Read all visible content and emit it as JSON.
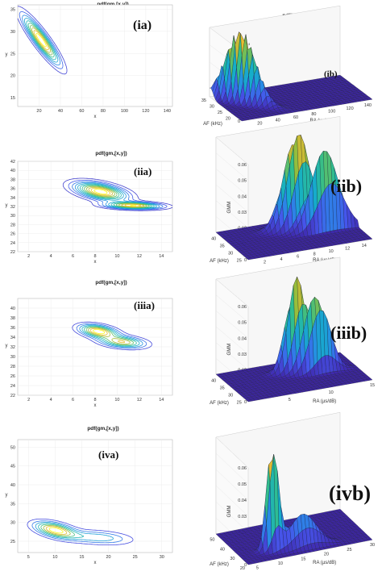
{
  "chart_data": [
    {
      "id": "ia",
      "type": "contour",
      "title": "pdf(gm,[x,y])",
      "tag": "(ia)",
      "xlabel": "x",
      "ylabel": "y",
      "xlim": [
        0,
        145
      ],
      "ylim": [
        13,
        36
      ],
      "xticks": [
        20,
        40,
        60,
        80,
        100,
        120,
        140
      ],
      "yticks": [
        15,
        20,
        25,
        30,
        35
      ],
      "components": [
        {
          "mx": 22,
          "my": 28,
          "sx": 11,
          "sy": 3.5,
          "rho": -0.9,
          "w": 1
        }
      ],
      "levels": 10
    },
    {
      "id": "ib",
      "type": "surface",
      "title": "pdf(gm,[x,y])",
      "tag": "(ib)",
      "zlabel": "GMM",
      "exponent": "×10⁻³",
      "xlabel": "RA (µs/dB)",
      "ylabel": "AF (kHz)",
      "xlim": [
        0,
        145
      ],
      "ylim": [
        15,
        35
      ],
      "xticks": [
        20,
        40,
        60,
        80,
        100,
        120,
        140
      ],
      "yticks": [
        20,
        25,
        30,
        35
      ],
      "zticks": [
        0,
        2,
        4,
        6,
        8
      ],
      "zmax": 8,
      "components": [
        {
          "mx": 22,
          "my": 28,
          "sx": 11,
          "sy": 3.5,
          "rho": -0.9,
          "w": 1
        }
      ]
    },
    {
      "id": "iia",
      "type": "contour",
      "title": "pdf(gm,[x,y])",
      "tag": "(iia)",
      "xlabel": "x",
      "ylabel": "y",
      "xlim": [
        1,
        15
      ],
      "ylim": [
        22,
        42
      ],
      "xticks": [
        2,
        4,
        6,
        8,
        10,
        12,
        14
      ],
      "yticks": [
        22,
        24,
        26,
        28,
        30,
        32,
        34,
        36,
        38,
        40,
        42
      ],
      "components": [
        {
          "mx": 8.5,
          "my": 35.3,
          "sx": 1.5,
          "sy": 1.3,
          "rho": -0.5,
          "w": 1
        },
        {
          "mx": 11.5,
          "my": 32.2,
          "sx": 1.6,
          "sy": 0.5,
          "rho": -0.2,
          "w": 0.9
        }
      ],
      "levels": 12
    },
    {
      "id": "iib",
      "type": "surface",
      "title": "pdf(gm,[x,y])",
      "tag": "(iib)",
      "zlabel": "GMM",
      "xlabel": "RA (µs/dB)",
      "ylabel": "AF (kHz)",
      "xlim": [
        0,
        15
      ],
      "ylim": [
        23,
        42
      ],
      "xticks": [
        2,
        4,
        6,
        8,
        10,
        12,
        14
      ],
      "yticks": [
        25,
        30,
        35,
        40
      ],
      "zticks": [
        0,
        0.01,
        0.02,
        0.03,
        0.04,
        0.05,
        0.06
      ],
      "zmax": 0.06,
      "components": [
        {
          "mx": 8.5,
          "my": 35.3,
          "sx": 1.5,
          "sy": 1.3,
          "rho": -0.5,
          "w": 1
        },
        {
          "mx": 11.5,
          "my": 32.2,
          "sx": 1.6,
          "sy": 0.5,
          "rho": -0.2,
          "w": 0.9
        }
      ]
    },
    {
      "id": "iiia",
      "type": "contour",
      "title": "pdf(gm,[x,y])",
      "tag": "(iiia)",
      "xlabel": "x",
      "ylabel": "y",
      "xlim": [
        1,
        15
      ],
      "ylim": [
        22,
        42
      ],
      "xticks": [
        2,
        4,
        6,
        8,
        10,
        12,
        14
      ],
      "yticks": [
        22,
        24,
        26,
        28,
        30,
        32,
        34,
        36,
        38,
        40
      ],
      "components": [
        {
          "mx": 8.3,
          "my": 35.2,
          "sx": 1.1,
          "sy": 0.9,
          "rho": -0.4,
          "w": 1
        },
        {
          "mx": 10.5,
          "my": 33,
          "sx": 1.3,
          "sy": 0.8,
          "rho": -0.3,
          "w": 0.8
        }
      ],
      "levels": 9
    },
    {
      "id": "iiib",
      "type": "surface",
      "title": "pdf(gm,[x,y])",
      "tag": "(iiib)",
      "zlabel": "GMM",
      "xlabel": "RA (µs/dB)",
      "ylabel": "AF (kHz)",
      "xlim": [
        0,
        15
      ],
      "ylim": [
        23,
        42
      ],
      "xticks": [
        5,
        10,
        15
      ],
      "yticks": [
        25,
        30,
        35,
        40
      ],
      "zticks": [
        0,
        0.01,
        0.02,
        0.03,
        0.04,
        0.05,
        0.06
      ],
      "zmax": 0.06,
      "components": [
        {
          "mx": 8.3,
          "my": 35.2,
          "sx": 1.1,
          "sy": 0.9,
          "rho": -0.4,
          "w": 1
        },
        {
          "mx": 10.5,
          "my": 33,
          "sx": 1.3,
          "sy": 0.8,
          "rho": -0.3,
          "w": 0.8
        }
      ]
    },
    {
      "id": "iva",
      "type": "contour",
      "title": "pdf(gm,[x,y])",
      "tag": "(iva)",
      "xlabel": "x",
      "ylabel": "y",
      "xlim": [
        3,
        32
      ],
      "ylim": [
        22,
        52
      ],
      "xticks": [
        5,
        10,
        15,
        20,
        25,
        30
      ],
      "yticks": [
        25,
        30,
        35,
        40,
        45,
        50
      ],
      "components": [
        {
          "mx": 10,
          "my": 28,
          "sx": 2.5,
          "sy": 1.4,
          "rho": -0.5,
          "w": 1
        },
        {
          "mx": 18,
          "my": 26,
          "sx": 4,
          "sy": 1.2,
          "rho": -0.3,
          "w": 0.45
        }
      ],
      "levels": 8
    },
    {
      "id": "ivb",
      "type": "surface",
      "title": "pdf(gm,[x,y])",
      "tag": "(ivb)",
      "zlabel": "GMM",
      "xlabel": "RA (µs/dB)",
      "ylabel": "AF (kHz)",
      "xlim": [
        3,
        30
      ],
      "ylim": [
        20,
        52
      ],
      "xticks": [
        5,
        10,
        15,
        20,
        25,
        30
      ],
      "yticks": [
        20,
        30,
        40,
        50
      ],
      "zticks": [
        0,
        0.01,
        0.02,
        0.03,
        0.04,
        0.05,
        0.06
      ],
      "zmax": 0.06,
      "components": [
        {
          "mx": 10,
          "my": 28,
          "sx": 1.1,
          "sy": 1.2,
          "rho": -0.3,
          "w": 1
        },
        {
          "mx": 16,
          "my": 26,
          "sx": 3,
          "sy": 1.6,
          "rho": -0.3,
          "w": 0.3
        }
      ]
    }
  ]
}
